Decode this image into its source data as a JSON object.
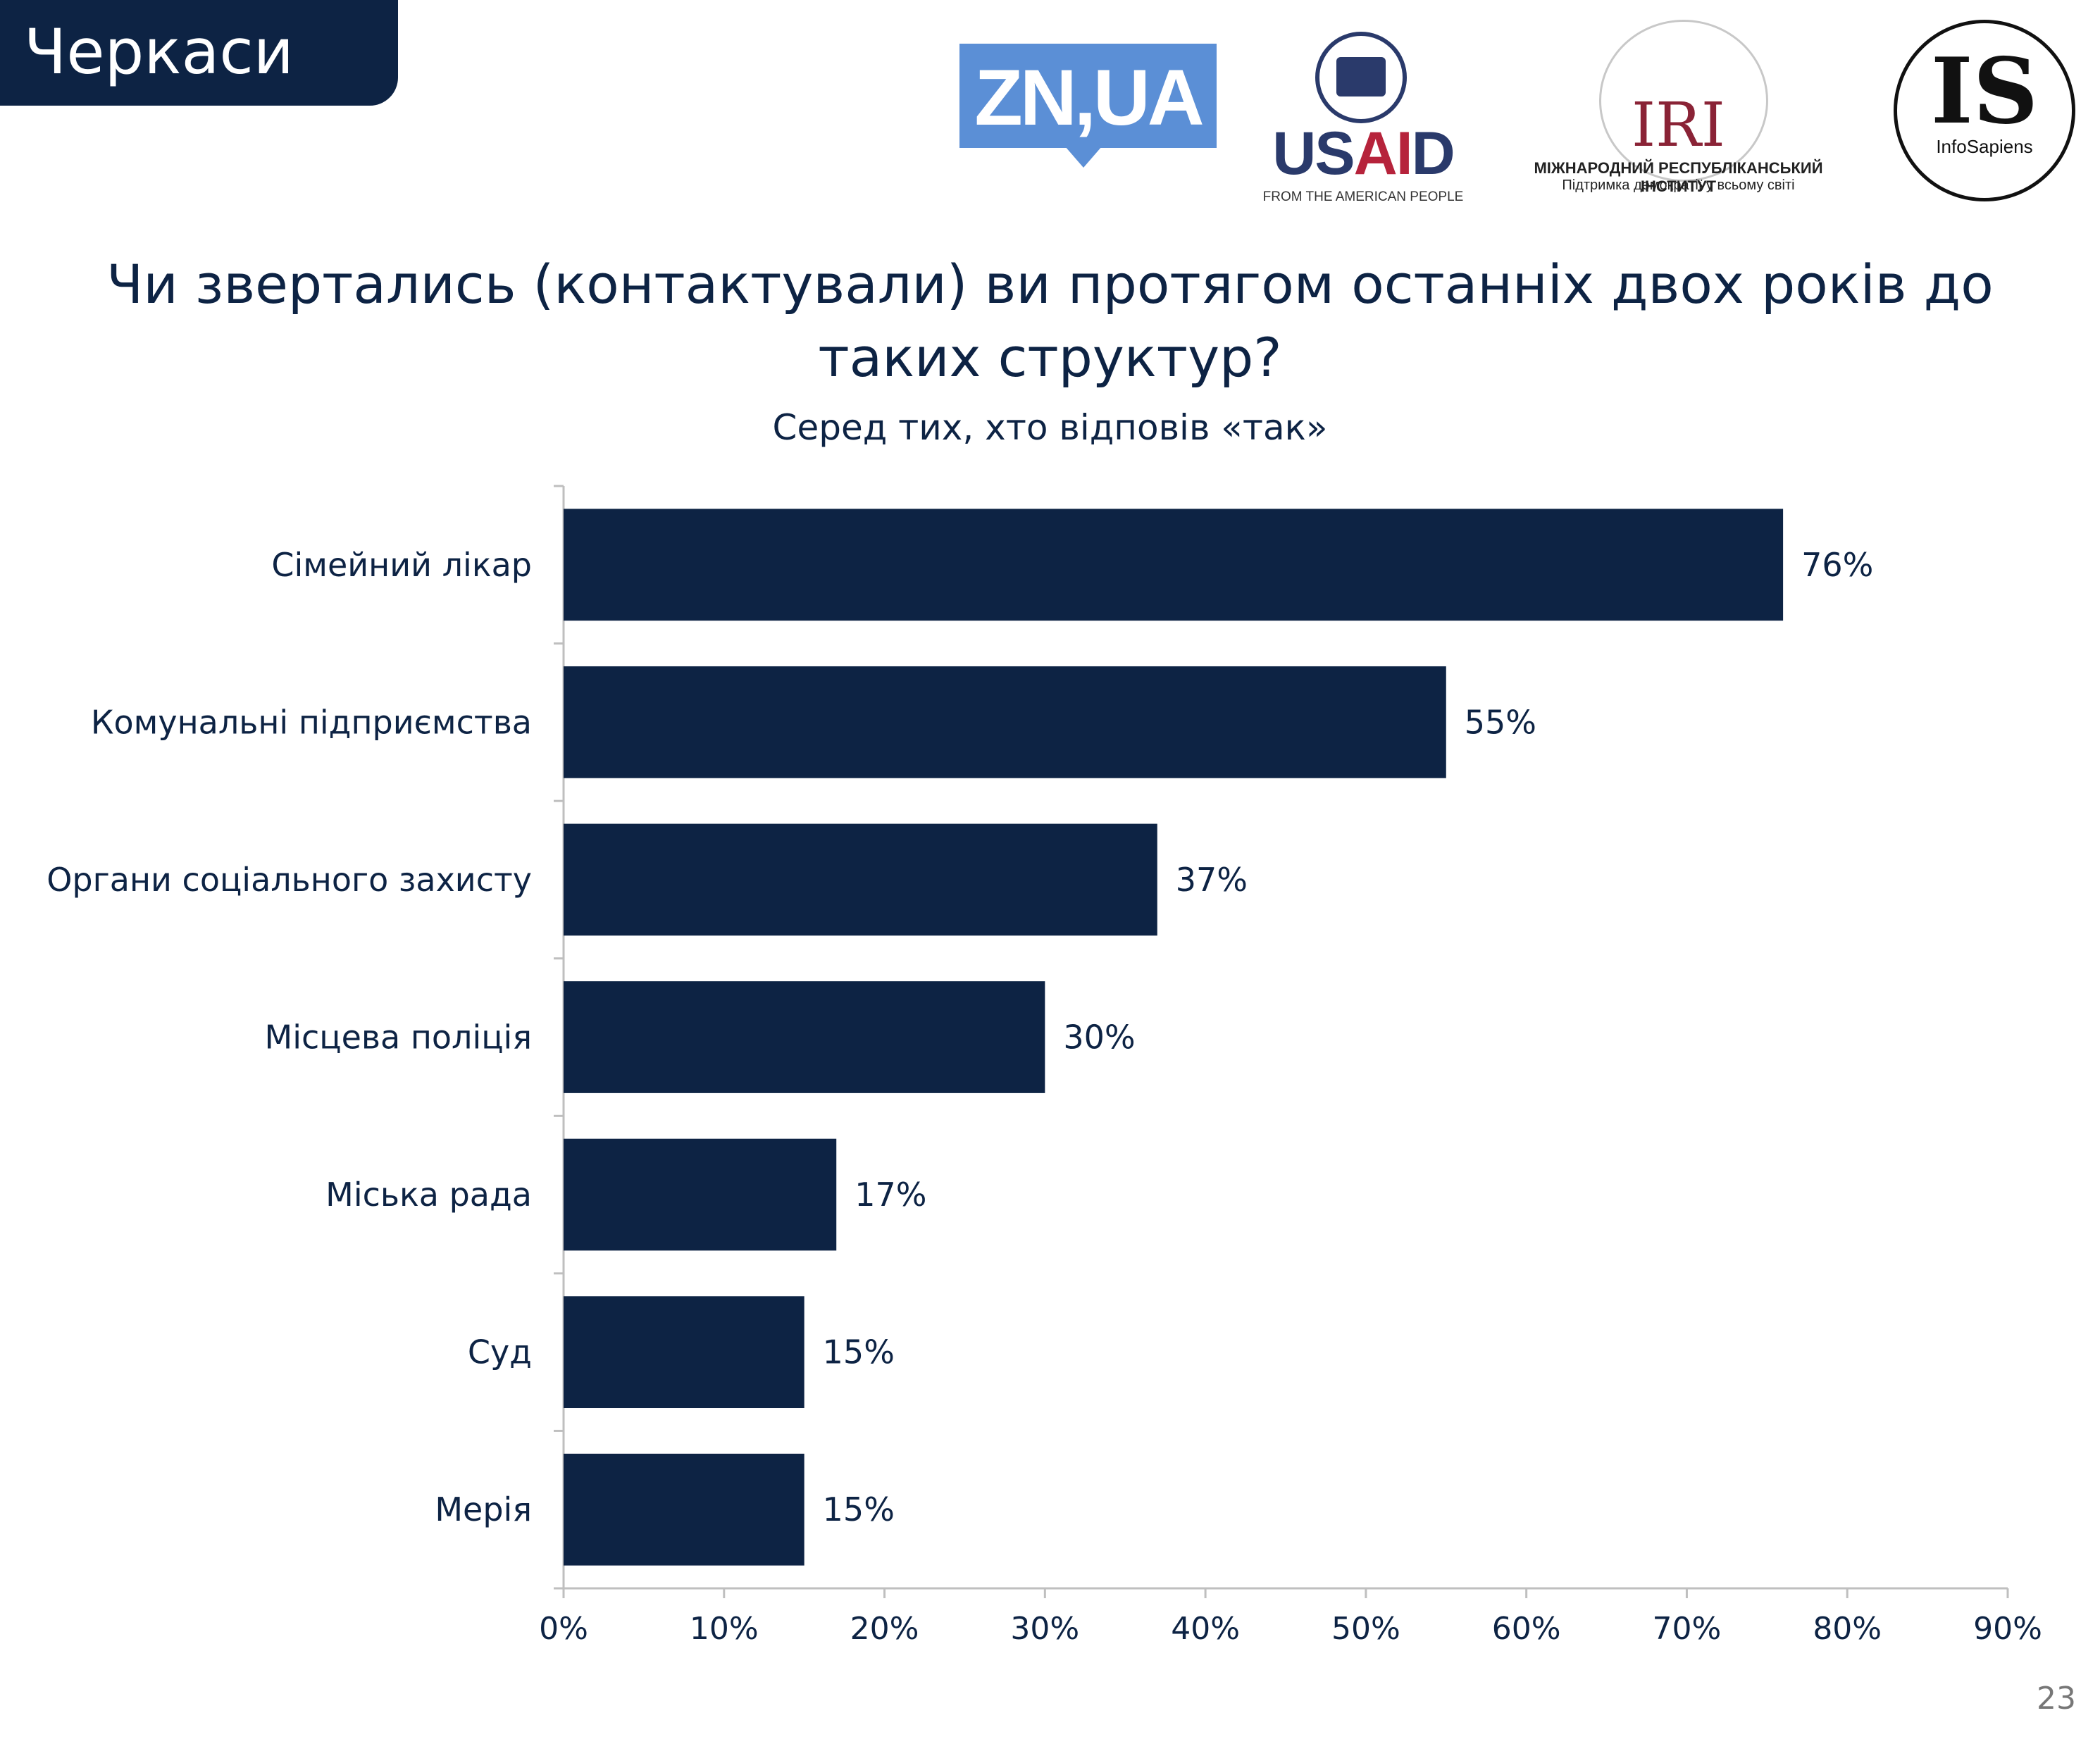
{
  "region_label": "Черкаси",
  "logos": {
    "zn": "ZN,UA",
    "usaid": "USAID",
    "usaid_tagline": "FROM THE AMERICAN PEOPLE",
    "iri": "IRI",
    "iri_line1": "МІЖНАРОДНИЙ РЕСПУБЛІКАНСЬКИЙ ІНСТИТУТ",
    "iri_line2": "Підтримка демократії у всьому світі",
    "infosapiens": "IS",
    "infosapiens_name": "InfoSapiens"
  },
  "page_number": "23",
  "colors": {
    "bar": "#0d2344",
    "text": "#0d2344",
    "axis": "#bfbfbf"
  },
  "chart_data": {
    "type": "bar",
    "orientation": "horizontal",
    "title": "Чи звертались (контактували) ви протягом останніх двох років до таких структур?",
    "subtitle": "Серед тих, хто відповів «так»",
    "categories": [
      "Сімейний лікар",
      "Комунальні підприємства",
      "Органи соціального захисту",
      "Місцева поліція",
      "Міська рада",
      "Суд",
      "Мерія"
    ],
    "values": [
      76,
      55,
      37,
      30,
      17,
      15,
      15
    ],
    "data_labels": [
      "76%",
      "55%",
      "37%",
      "30%",
      "17%",
      "15%",
      "15%"
    ],
    "xlim": [
      0,
      90
    ],
    "xticks": [
      "0%",
      "10%",
      "20%",
      "30%",
      "40%",
      "50%",
      "60%",
      "70%",
      "80%",
      "90%"
    ],
    "grid": false,
    "legend": "none"
  }
}
